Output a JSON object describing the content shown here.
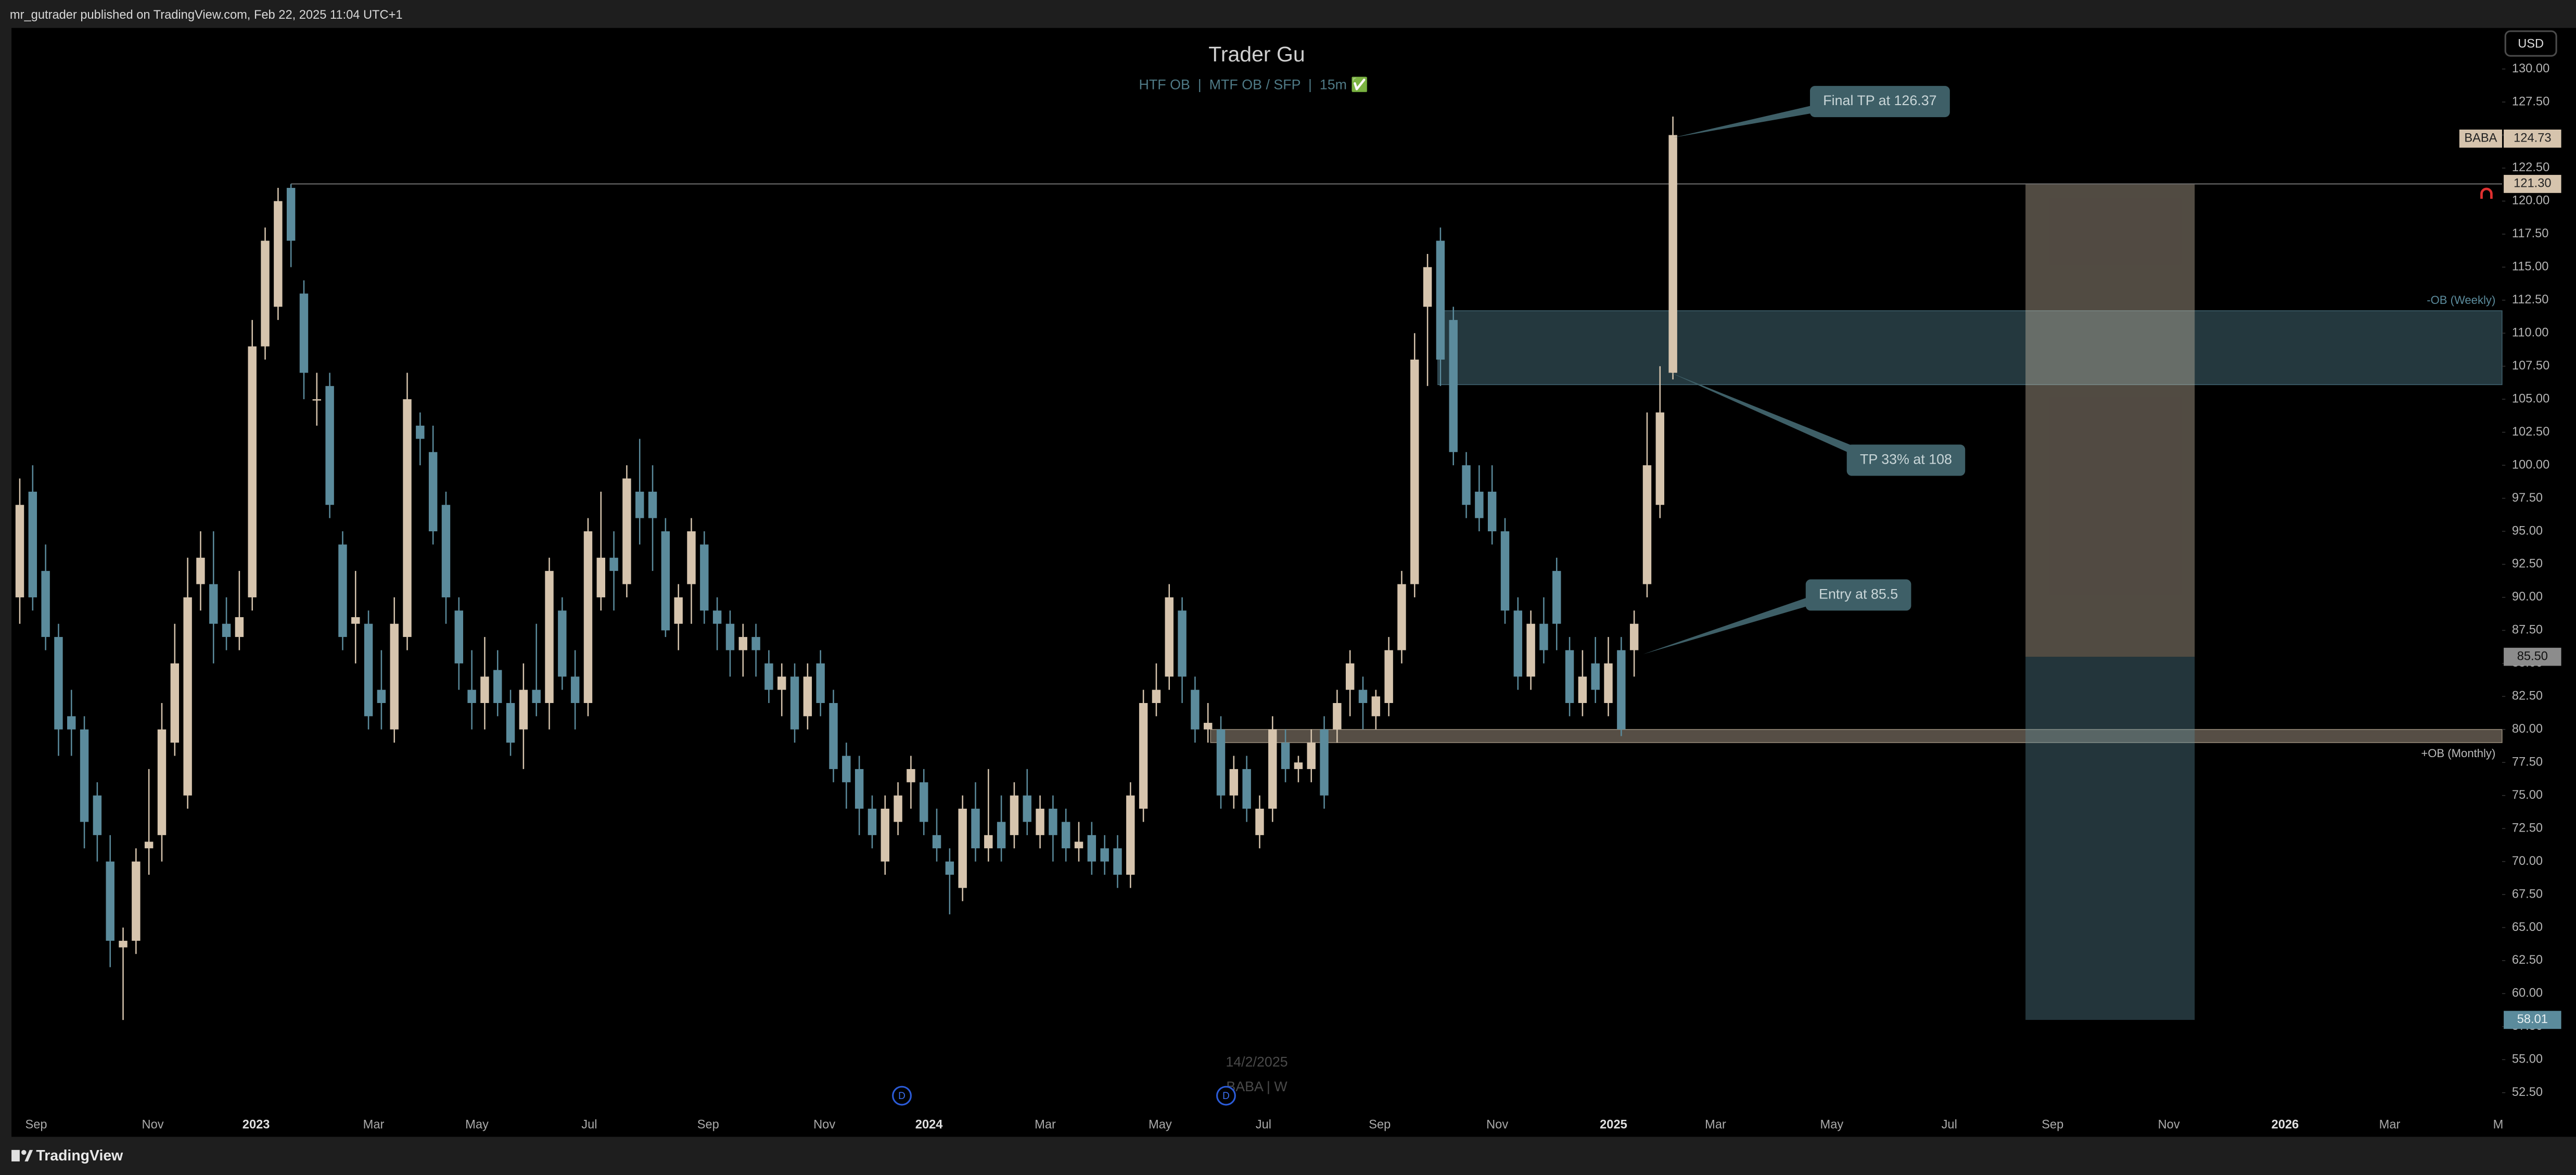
{
  "header": {
    "publisher": "mr_gutrader published on TradingView.com, Feb 22, 2025 11:04 UTC+1"
  },
  "footer": {
    "brand": "TradingView"
  },
  "chart_data": {
    "type": "candlestick",
    "title": "Trader Gu",
    "subtitle": "HTF OB  |  MTF OB / SFP  |  15m ✅",
    "currency": "USD",
    "symbol": "BABA",
    "last_price": 124.73,
    "watermark": [
      "14/2/2025",
      "BABA | W"
    ],
    "up_color": "#d6c4ad",
    "down_color": "#5b8b9c",
    "open": [
      90,
      98,
      92,
      87,
      81,
      80,
      75,
      70,
      63.5,
      64,
      71,
      72,
      79,
      75,
      91,
      91,
      88,
      87,
      90,
      109,
      112,
      121,
      113,
      105,
      106,
      94,
      88,
      88,
      83,
      80,
      87,
      103,
      101,
      97,
      89,
      83,
      82,
      84.5,
      82,
      80,
      83,
      82,
      89,
      84,
      82,
      90,
      93,
      91,
      98,
      98,
      95,
      88,
      91,
      94,
      89,
      88,
      86,
      87,
      85,
      83,
      84,
      81,
      85,
      82,
      78,
      77,
      74,
      70,
      73,
      76,
      76,
      72,
      70,
      68,
      74,
      71,
      73,
      72,
      75,
      72,
      74,
      73,
      71,
      72,
      71,
      71,
      69,
      74,
      82,
      84,
      89,
      83,
      80,
      80,
      75,
      77,
      72,
      74,
      79,
      77,
      77,
      80,
      80,
      83,
      83,
      81,
      82,
      86,
      91,
      112,
      117,
      111,
      100,
      98,
      98,
      95,
      89,
      84,
      88,
      92,
      86,
      82,
      85,
      82,
      86,
      86,
      91,
      97,
      107
    ],
    "high": [
      99,
      100,
      94,
      88,
      83,
      81,
      76,
      72,
      65,
      71,
      77,
      82,
      88,
      93,
      95,
      95,
      90,
      92,
      111,
      118,
      121,
      121.3,
      114,
      107,
      107,
      95,
      92,
      89,
      86,
      90,
      107,
      104,
      103,
      98,
      90,
      86,
      87,
      86,
      83,
      85,
      88,
      93,
      90,
      86,
      96,
      98,
      95,
      100,
      102,
      100,
      96,
      91,
      96,
      95,
      90,
      89,
      88,
      88,
      86,
      85,
      85,
      85,
      86,
      83,
      79,
      78,
      75,
      75,
      76,
      78,
      77,
      74,
      71,
      75,
      76,
      77,
      75,
      76,
      77,
      75,
      75,
      74,
      73,
      73,
      72,
      72,
      76,
      83,
      85,
      91,
      90,
      84,
      82,
      81,
      78,
      78,
      75,
      81,
      80,
      78,
      80,
      81,
      83,
      86,
      84,
      83,
      87,
      92,
      110,
      116,
      118,
      112,
      101,
      100,
      100,
      96,
      90,
      89,
      90,
      93,
      87,
      86,
      87,
      87,
      87,
      89,
      104,
      107.5,
      126.4
    ],
    "low": [
      88,
      89,
      86,
      78,
      78,
      71,
      70,
      62,
      58,
      63,
      69,
      70,
      78,
      74,
      89,
      85,
      86,
      86,
      89,
      108,
      111,
      115,
      105,
      103,
      96,
      86,
      85,
      80,
      80,
      79,
      86,
      100,
      94,
      88,
      83,
      80,
      80,
      81,
      78,
      77,
      81,
      80,
      83,
      80,
      81,
      89,
      89,
      90,
      94,
      92,
      87,
      86,
      88,
      88,
      86,
      84,
      84,
      84,
      82,
      81,
      79,
      80,
      81,
      76,
      74,
      72,
      71,
      69,
      72,
      74,
      72,
      70,
      66,
      67,
      70,
      70,
      70,
      71,
      72,
      71,
      70,
      70,
      70,
      69,
      69,
      68,
      68,
      73,
      81,
      83,
      82,
      79,
      79,
      74,
      74,
      73,
      71,
      73,
      76,
      76,
      76,
      74,
      79,
      81,
      80,
      80,
      81,
      85,
      90,
      106,
      106,
      100,
      96,
      95,
      94,
      88,
      83,
      83,
      85,
      86,
      81,
      81,
      82,
      81,
      79.5,
      84,
      90,
      96,
      106.5
    ],
    "close": [
      97,
      90,
      87,
      80,
      80,
      73,
      72,
      64,
      64,
      70,
      71.5,
      80,
      85,
      90,
      93,
      88,
      87,
      88.5,
      109,
      117,
      120,
      117,
      107,
      105,
      97,
      87,
      88.5,
      81,
      82,
      88,
      105,
      102,
      95,
      90,
      85,
      82,
      84,
      82,
      79,
      83,
      82,
      92,
      84,
      82,
      95,
      93,
      92,
      99,
      96,
      96,
      87.5,
      90,
      95,
      89,
      88,
      86,
      87,
      86,
      83,
      84,
      80,
      84,
      82,
      77,
      76,
      74,
      72,
      74,
      75,
      77,
      73,
      71,
      69,
      74,
      71,
      72,
      71,
      75,
      73,
      74,
      72,
      71,
      71.5,
      70,
      70,
      69,
      75,
      82,
      83,
      90,
      84,
      80,
      80.5,
      75,
      77,
      74,
      74,
      80,
      77,
      77.5,
      79,
      75,
      82,
      85,
      82,
      82.5,
      86,
      91,
      108,
      115,
      108,
      101,
      97,
      96,
      95,
      89,
      84,
      88,
      86,
      88,
      82,
      84,
      83,
      85,
      80,
      88,
      100,
      104,
      125
    ],
    "xlim": [
      -0.64,
      192.2
    ],
    "xticks": [
      {
        "value": 1.27,
        "label": "Sep"
      },
      {
        "value": 10.3,
        "label": "Nov"
      },
      {
        "value": 18.3,
        "label": "2023"
      },
      {
        "value": 27.4,
        "label": "Mar"
      },
      {
        "value": 35.4,
        "label": "May"
      },
      {
        "value": 44.1,
        "label": "Jul"
      },
      {
        "value": 53.3,
        "label": "Sep"
      },
      {
        "value": 62.3,
        "label": "Nov"
      },
      {
        "value": 70.4,
        "label": "2024"
      },
      {
        "value": 79.4,
        "label": "Mar"
      },
      {
        "value": 88.3,
        "label": "May"
      },
      {
        "value": 96.3,
        "label": "Jul"
      },
      {
        "value": 105.3,
        "label": "Sep"
      },
      {
        "value": 114.4,
        "label": "Nov"
      },
      {
        "value": 123.4,
        "label": "2025"
      },
      {
        "value": 131.3,
        "label": "Mar"
      },
      {
        "value": 140.3,
        "label": "May"
      },
      {
        "value": 149.4,
        "label": "Jul"
      },
      {
        "value": 157.4,
        "label": "Sep"
      },
      {
        "value": 166.4,
        "label": "Nov"
      },
      {
        "value": 175.4,
        "label": "2026"
      },
      {
        "value": 183.5,
        "label": "Mar"
      },
      {
        "value": 191.9,
        "label": "M"
      }
    ],
    "ylim": [
      49.16,
      133.11
    ],
    "yticks": [
      {
        "value": 130,
        "label": "130.00"
      },
      {
        "value": 127.5,
        "label": "127.50"
      },
      {
        "value": 125,
        "label": "125.00"
      },
      {
        "value": 122.5,
        "label": "122.50"
      },
      {
        "value": 120,
        "label": "120.00"
      },
      {
        "value": 117.5,
        "label": "117.50"
      },
      {
        "value": 115,
        "label": "115.00"
      },
      {
        "value": 112.5,
        "label": "112.50"
      },
      {
        "value": 110,
        "label": "110.00"
      },
      {
        "value": 107.5,
        "label": "107.50"
      },
      {
        "value": 105,
        "label": "105.00"
      },
      {
        "value": 102.5,
        "label": "102.50"
      },
      {
        "value": 100,
        "label": "100.00"
      },
      {
        "value": 97.5,
        "label": "97.50"
      },
      {
        "value": 95,
        "label": "95.00"
      },
      {
        "value": 92.5,
        "label": "92.50"
      },
      {
        "value": 90,
        "label": "90.00"
      },
      {
        "value": 87.5,
        "label": "87.50"
      },
      {
        "value": 85,
        "label": "85.00"
      },
      {
        "value": 82.5,
        "label": "82.50"
      },
      {
        "value": 80,
        "label": "80.00"
      },
      {
        "value": 77.5,
        "label": "77.50"
      },
      {
        "value": 75,
        "label": "75.00"
      },
      {
        "value": 72.5,
        "label": "72.50"
      },
      {
        "value": 70,
        "label": "70.00"
      },
      {
        "value": 67.5,
        "label": "67.50"
      },
      {
        "value": 65,
        "label": "65.00"
      },
      {
        "value": 62.5,
        "label": "62.50"
      },
      {
        "value": 60,
        "label": "60.00"
      },
      {
        "value": 57.5,
        "label": "57.50"
      },
      {
        "value": 55,
        "label": "55.00"
      },
      {
        "value": 52.5,
        "label": "52.50"
      }
    ],
    "level": {
      "value": 121.3,
      "label": "121.30"
    },
    "level_start": 21,
    "zones": [
      {
        "name": "-OB (Weekly)",
        "top": 111.7,
        "bottom": 106.1,
        "start": 109.8,
        "color": "#5b8b9c"
      },
      {
        "name": "+OB (Monthly)",
        "top": 80,
        "bottom": 79,
        "start": 92.2,
        "color": "#d6c4ad"
      }
    ],
    "position": {
      "start": 155.3,
      "end": 168.4,
      "target": 121.3,
      "entry": {
        "value": 85.5,
        "label": "85.50"
      },
      "stop": {
        "value": 58.01,
        "label": "58.01"
      },
      "profit_color": "#d6c4ad",
      "loss_color": "#5b8b9c"
    },
    "callouts": [
      {
        "text": "Final TP at 126.37",
        "x": 128,
        "y": 124.8
      },
      {
        "text": "TP 33% at 108",
        "x": 127.6,
        "y": 107.1
      },
      {
        "text": "Entry at 85.5",
        "x": 125.7,
        "y": 85.7
      }
    ],
    "events": [
      {
        "label": "D",
        "x": 68.3
      },
      {
        "label": "D",
        "x": 93.4
      }
    ]
  }
}
